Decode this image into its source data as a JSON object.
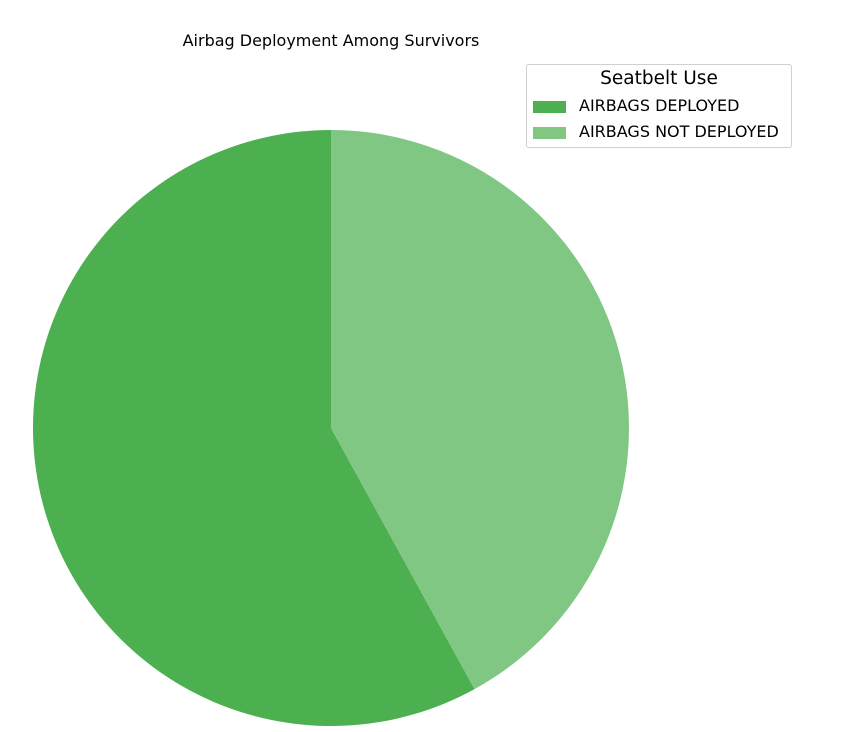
{
  "chart_data": {
    "type": "pie",
    "title": "Airbag Deployment Among Survivors",
    "legend": {
      "title": "Seatbelt Use",
      "placement": "top-right"
    },
    "categories": [
      "AIRBAGS DEPLOYED",
      "AIRBAGS NOT DEPLOYED"
    ],
    "values": [
      58,
      42
    ],
    "colors": [
      "#4caf50",
      "#81c784"
    ],
    "start_angle_deg": 90,
    "direction": "clockwise-from-top-with-first-slice-counterclockwise"
  }
}
